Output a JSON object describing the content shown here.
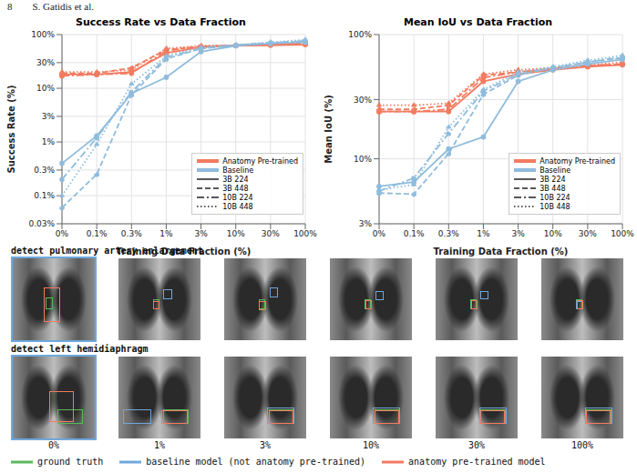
{
  "header": {
    "page": "8",
    "running_head": "S. Gatidis et al."
  },
  "chart_data": [
    {
      "type": "line",
      "title": "Success Rate vs Data Fraction",
      "x_label": "Training Data Fraction (%)",
      "y_label": "Success Rate (%)",
      "categories": [
        "0%",
        "0.1%",
        "0.3%",
        "1%",
        "3%",
        "10%",
        "30%",
        "100%"
      ],
      "log": "y",
      "grid": true,
      "legend": "lower right",
      "ylim": [
        0.03,
        100
      ],
      "yticks": [
        {
          "value": 0.03,
          "label": "0.03%"
        },
        {
          "value": 0.1,
          "label": "0.1%"
        },
        {
          "value": 0.3,
          "label": "0.3%"
        },
        {
          "value": 1,
          "label": "1%"
        },
        {
          "value": 3,
          "label": "3%"
        },
        {
          "value": 10,
          "label": "10%"
        },
        {
          "value": 30,
          "label": "30%"
        },
        {
          "value": 100,
          "label": "100%"
        }
      ],
      "groups": [
        {
          "name": "Anatomy Pre-trained",
          "color": "#f27b60"
        },
        {
          "name": "Baseline",
          "color": "#8fbcdc"
        }
      ],
      "configs": [
        {
          "name": "3B 224",
          "line_style": "solid"
        },
        {
          "name": "3B 448",
          "line_style": "dashed"
        },
        {
          "name": "10B 224",
          "line_style": "dashdot"
        },
        {
          "name": "10B 448",
          "line_style": "dotted"
        }
      ],
      "series": [
        {
          "group": "Anatomy Pre-trained",
          "config": "3B 224",
          "values": [
            18,
            18,
            20,
            45,
            58,
            62,
            63,
            65
          ]
        },
        {
          "group": "Anatomy Pre-trained",
          "config": "3B 448",
          "values": [
            19,
            19,
            24,
            52,
            60,
            63,
            65,
            68
          ]
        },
        {
          "group": "Anatomy Pre-trained",
          "config": "10B 224",
          "values": [
            17,
            18,
            19,
            50,
            60,
            63,
            65,
            67
          ]
        },
        {
          "group": "Anatomy Pre-trained",
          "config": "10B 448",
          "values": [
            20,
            20,
            22,
            55,
            62,
            63,
            66,
            70
          ]
        },
        {
          "group": "Baseline",
          "config": "3B 224",
          "values": [
            0.4,
            1.3,
            8,
            16,
            48,
            62,
            68,
            72
          ]
        },
        {
          "group": "Baseline",
          "config": "3B 448",
          "values": [
            0.06,
            0.25,
            7.5,
            35,
            55,
            64,
            70,
            75
          ]
        },
        {
          "group": "Baseline",
          "config": "10B 224",
          "values": [
            0.2,
            1.2,
            8.5,
            38,
            55,
            63,
            70,
            76
          ]
        },
        {
          "group": "Baseline",
          "config": "10B 448",
          "values": [
            0.1,
            0.9,
            12,
            40,
            58,
            64,
            72,
            80
          ]
        }
      ]
    },
    {
      "type": "line",
      "title": "Mean IoU vs Data Fraction",
      "x_label": "Training Data Fraction (%)",
      "y_label": "Mean IoU (%)",
      "categories": [
        "0%",
        "0.1%",
        "0.3%",
        "1%",
        "3%",
        "10%",
        "30%",
        "100%"
      ],
      "log": "y",
      "grid": true,
      "legend": "lower right",
      "ylim": [
        3,
        100
      ],
      "yticks": [
        {
          "value": 3,
          "label": "3%"
        },
        {
          "value": 10,
          "label": "10%"
        },
        {
          "value": 30,
          "label": "30%"
        },
        {
          "value": 100,
          "label": "100%"
        }
      ],
      "groups": [
        {
          "name": "Anatomy Pre-trained",
          "color": "#f27b60"
        },
        {
          "name": "Baseline",
          "color": "#8fbcdc"
        }
      ],
      "configs": [
        {
          "name": "3B 224",
          "line_style": "solid"
        },
        {
          "name": "3B 448",
          "line_style": "dashed"
        },
        {
          "name": "10B 224",
          "line_style": "dashdot"
        },
        {
          "name": "10B 448",
          "line_style": "dotted"
        }
      ],
      "series": [
        {
          "group": "Anatomy Pre-trained",
          "config": "3B 224",
          "values": [
            24,
            24,
            24,
            42,
            48,
            52,
            55,
            57
          ]
        },
        {
          "group": "Anatomy Pre-trained",
          "config": "3B 448",
          "values": [
            25,
            25,
            27,
            47,
            50,
            53,
            56,
            58
          ]
        },
        {
          "group": "Anatomy Pre-trained",
          "config": "10B 224",
          "values": [
            24,
            24,
            25,
            45,
            50,
            53,
            56,
            58
          ]
        },
        {
          "group": "Anatomy Pre-trained",
          "config": "10B 448",
          "values": [
            27,
            27,
            28,
            48,
            52,
            54,
            57,
            60
          ]
        },
        {
          "group": "Baseline",
          "config": "3B 224",
          "values": [
            6,
            6.5,
            12,
            15,
            42,
            52,
            58,
            63
          ]
        },
        {
          "group": "Baseline",
          "config": "3B 448",
          "values": [
            5.3,
            5.2,
            11,
            33,
            47,
            54,
            60,
            65
          ]
        },
        {
          "group": "Baseline",
          "config": "10B 224",
          "values": [
            5.5,
            7,
            16,
            35,
            48,
            54,
            60,
            66
          ]
        },
        {
          "group": "Baseline",
          "config": "10B 448",
          "values": [
            5.6,
            6.2,
            18,
            36,
            50,
            55,
            62,
            68
          ]
        }
      ]
    }
  ],
  "images": {
    "columns": [
      "0%",
      "1%",
      "3%",
      "10%",
      "30%",
      "100%"
    ],
    "legend": [
      {
        "name": "ground truth",
        "color": "#5cb85c"
      },
      {
        "name": "baseline model (not anatomy pre-trained)",
        "color": "#6fa8dc"
      },
      {
        "name": "anatomy pre-trained model",
        "color": "#f27b60"
      }
    ],
    "rows": [
      {
        "label": "detect pulmonary artery enlargement",
        "panels": [
          [
            {
              "kind": "ground truth",
              "box": [
                40,
                48,
                9,
                14
              ]
            },
            {
              "kind": "anatomy pre-trained model",
              "box": [
                38,
                36,
                20,
                42
              ]
            }
          ],
          [
            {
              "kind": "ground truth",
              "box": [
                42,
                50,
                8,
                12
              ]
            },
            {
              "kind": "baseline model (not anatomy pre-trained)",
              "box": [
                54,
                38,
                12,
                12
              ]
            },
            {
              "kind": "anatomy pre-trained model",
              "box": [
                42,
                52,
                8,
                10
              ]
            }
          ],
          [
            {
              "kind": "ground truth",
              "box": [
                42,
                50,
                8,
                12
              ]
            },
            {
              "kind": "baseline model (not anatomy pre-trained)",
              "box": [
                55,
                36,
                11,
                12
              ]
            },
            {
              "kind": "anatomy pre-trained model",
              "box": [
                42,
                52,
                9,
                11
              ]
            }
          ],
          [
            {
              "kind": "ground truth",
              "box": [
                42,
                50,
                8,
                12
              ]
            },
            {
              "kind": "baseline model (not anatomy pre-trained)",
              "box": [
                55,
                40,
                10,
                11
              ]
            },
            {
              "kind": "anatomy pre-trained model",
              "box": [
                43,
                51,
                8,
                11
              ]
            }
          ],
          [
            {
              "kind": "ground truth",
              "box": [
                42,
                50,
                8,
                12
              ]
            },
            {
              "kind": "baseline model (not anatomy pre-trained)",
              "box": [
                54,
                40,
                10,
                10
              ]
            },
            {
              "kind": "anatomy pre-trained model",
              "box": [
                43,
                51,
                8,
                11
              ]
            }
          ],
          [
            {
              "kind": "ground truth",
              "box": [
                42,
                50,
                8,
                12
              ]
            },
            {
              "kind": "baseline model (not anatomy pre-trained)",
              "box": [
                42,
                52,
                9,
                10
              ]
            },
            {
              "kind": "anatomy pre-trained model",
              "box": [
                43,
                51,
                8,
                11
              ]
            }
          ]
        ]
      },
      {
        "label": "detect left hemidiaphragm",
        "panels": [
          [
            {
              "kind": "ground truth",
              "box": [
                54,
                64,
                32,
                18
              ]
            },
            {
              "kind": "anatomy pre-trained model",
              "box": [
                44,
                42,
                30,
                38
              ]
            }
          ],
          [
            {
              "kind": "ground truth",
              "box": [
                54,
                64,
                32,
                18
              ]
            },
            {
              "kind": "baseline model (not anatomy pre-trained)",
              "box": [
                6,
                64,
                34,
                18
              ]
            },
            {
              "kind": "anatomy pre-trained model",
              "box": [
                52,
                66,
                33,
                16
              ]
            }
          ],
          [
            {
              "kind": "ground truth",
              "box": [
                54,
                64,
                32,
                18
              ]
            },
            {
              "kind": "baseline model (not anatomy pre-trained)",
              "box": [
                52,
                62,
                34,
                20
              ]
            },
            {
              "kind": "anatomy pre-trained model",
              "box": [
                54,
                66,
                30,
                16
              ]
            }
          ],
          [
            {
              "kind": "ground truth",
              "box": [
                54,
                64,
                32,
                18
              ]
            },
            {
              "kind": "baseline model (not anatomy pre-trained)",
              "box": [
                52,
                62,
                34,
                20
              ]
            },
            {
              "kind": "anatomy pre-trained model",
              "box": [
                54,
                65,
                31,
                17
              ]
            }
          ],
          [
            {
              "kind": "ground truth",
              "box": [
                54,
                64,
                32,
                18
              ]
            },
            {
              "kind": "baseline model (not anatomy pre-trained)",
              "box": [
                53,
                62,
                34,
                20
              ]
            },
            {
              "kind": "anatomy pre-trained model",
              "box": [
                54,
                65,
                31,
                17
              ]
            }
          ],
          [
            {
              "kind": "ground truth",
              "box": [
                54,
                64,
                32,
                18
              ]
            },
            {
              "kind": "baseline model (not anatomy pre-trained)",
              "box": [
                53,
                62,
                34,
                20
              ]
            },
            {
              "kind": "anatomy pre-trained model",
              "box": [
                54,
                65,
                31,
                17
              ]
            }
          ]
        ]
      }
    ]
  }
}
